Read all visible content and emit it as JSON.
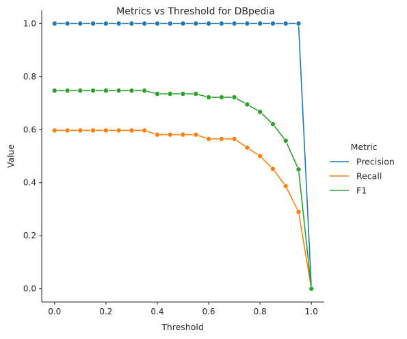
{
  "chart_data": {
    "type": "line",
    "title": "Metrics vs Threshold for DBpedia",
    "xlabel": "Threshold",
    "ylabel": "Value",
    "xlim": [
      -0.05,
      1.05
    ],
    "ylim": [
      -0.05,
      1.05
    ],
    "xticks": [
      "0.0",
      "0.2",
      "0.4",
      "0.6",
      "0.8",
      "1.0"
    ],
    "yticks": [
      "0.0",
      "0.2",
      "0.4",
      "0.6",
      "0.8",
      "1.0"
    ],
    "grid": false,
    "legend": {
      "title": "Metric",
      "placement": "right-outside"
    },
    "x": [
      0.0,
      0.05,
      0.1,
      0.15,
      0.2,
      0.25,
      0.3,
      0.35,
      0.4,
      0.45,
      0.5,
      0.55,
      0.6,
      0.65,
      0.7,
      0.75,
      0.8,
      0.85,
      0.9,
      0.95,
      1.0
    ],
    "series": [
      {
        "name": "Precision",
        "color": "#1f77b4",
        "values": [
          1.0,
          1.0,
          1.0,
          1.0,
          1.0,
          1.0,
          1.0,
          1.0,
          1.0,
          1.0,
          1.0,
          1.0,
          1.0,
          1.0,
          1.0,
          1.0,
          1.0,
          1.0,
          1.0,
          1.0,
          0.0
        ]
      },
      {
        "name": "Recall",
        "color": "#ff7f0e",
        "values": [
          0.597,
          0.597,
          0.597,
          0.597,
          0.597,
          0.597,
          0.597,
          0.597,
          0.581,
          0.581,
          0.581,
          0.581,
          0.565,
          0.565,
          0.565,
          0.532,
          0.5,
          0.452,
          0.387,
          0.29,
          0.0
        ]
      },
      {
        "name": "F1",
        "color": "#2ca02c",
        "values": [
          0.747,
          0.747,
          0.747,
          0.747,
          0.747,
          0.747,
          0.747,
          0.747,
          0.735,
          0.735,
          0.735,
          0.735,
          0.722,
          0.722,
          0.722,
          0.695,
          0.667,
          0.621,
          0.558,
          0.45,
          0.0
        ]
      }
    ]
  }
}
